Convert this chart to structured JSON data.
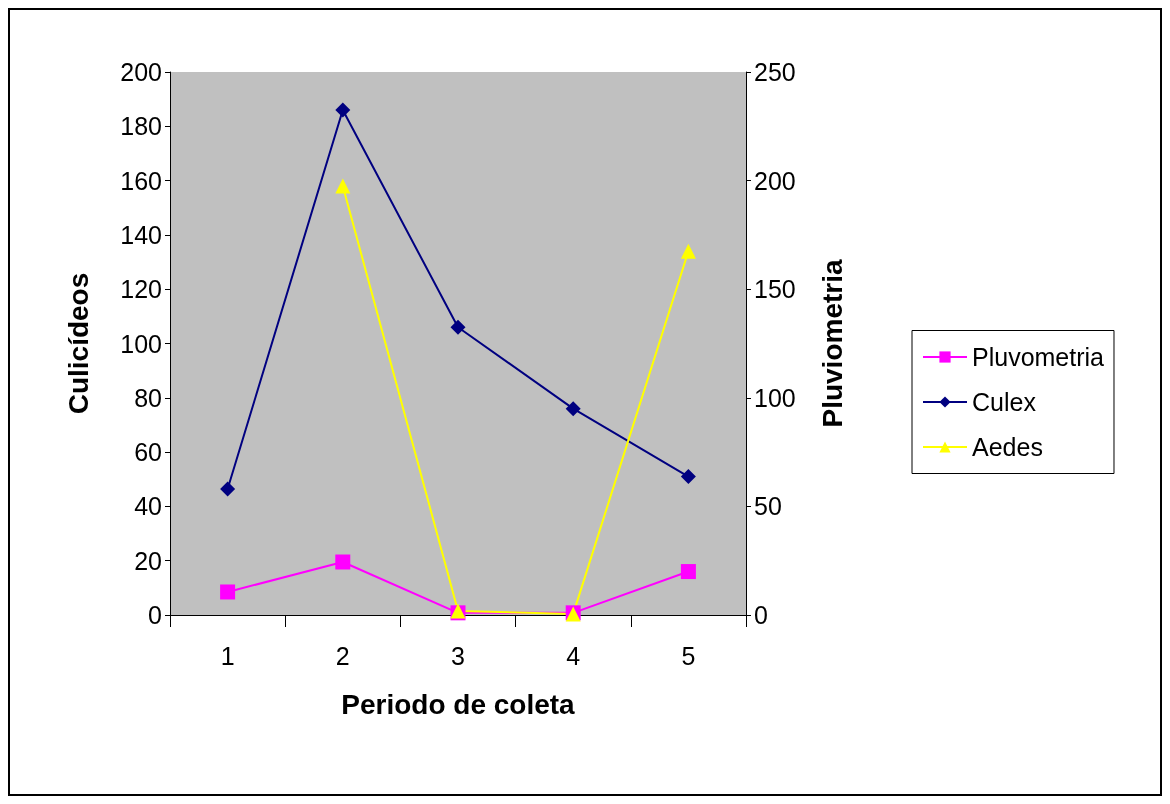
{
  "chart_data": {
    "type": "line",
    "categories": [
      "1",
      "2",
      "3",
      "4",
      "5"
    ],
    "xlabel": "Periodo de coleta",
    "ylabel": "Culicídeos",
    "y2label": "Pluviometria",
    "ylim": [
      0,
      200
    ],
    "yticks": [
      0,
      20,
      40,
      60,
      80,
      100,
      120,
      140,
      160,
      180,
      200
    ],
    "y2lim": [
      0,
      250
    ],
    "y2ticks": [
      0,
      50,
      100,
      150,
      200,
      250
    ],
    "grid": false,
    "legend": "right",
    "series": [
      {
        "name": "Pluvometria",
        "color": "#ff00ff",
        "axis": "y2",
        "marker": "square",
        "values": [
          10.6,
          24.4,
          1,
          1,
          20
        ]
      },
      {
        "name": "Culex",
        "color": "#000080",
        "axis": "y",
        "marker": "diamond",
        "values": [
          46.4,
          186,
          106,
          76,
          51
        ]
      },
      {
        "name": "Aedes",
        "color": "#ffff00",
        "axis": "y",
        "marker": "triangle",
        "values": [
          null,
          158,
          1.5,
          0.4,
          134
        ]
      }
    ]
  }
}
